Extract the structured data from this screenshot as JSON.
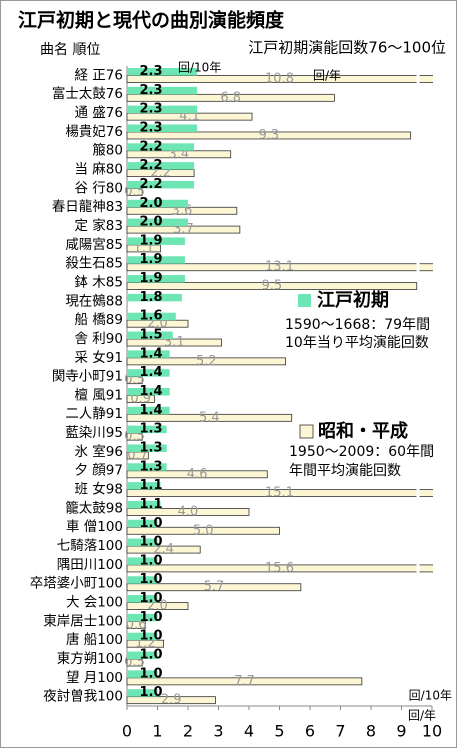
{
  "chart_data": {
    "type": "bar",
    "orientation": "horizontal",
    "title": "江戸初期と現代の曲別演能頻度",
    "subtitle": "江戸初期演能回数76～100位",
    "category_header": "曲名 順位",
    "categories": [
      "経 正76",
      "富士太鼓76",
      "通 盛76",
      "楊貴妃76",
      "箙80",
      "当 麻80",
      "谷 行80",
      "春日龍神83",
      "定 家83",
      "咸陽宮85",
      "殺生石85",
      "鉢 木85",
      "現在鵺88",
      "船 橋89",
      "舎 利90",
      "采 女91",
      "関寺小町91",
      "檀 風91",
      "二人静91",
      "藍染川95",
      "氷 室96",
      "夕 顔97",
      "班 女98",
      "籠太鼓98",
      "車 僧100",
      "七騎落100",
      "隅田川100",
      "卒塔婆小町100",
      "大 会100",
      "東岸居士100",
      "唐 船100",
      "東方朔100",
      "望 月100",
      "夜討曽我100"
    ],
    "series": [
      {
        "name": "江戸初期",
        "color": "#6ee6b4",
        "unit": "回/10年",
        "period": "1590～1668：79年間",
        "description": "10年当り平均演能回数",
        "values": [
          2.3,
          2.3,
          2.3,
          2.3,
          2.2,
          2.2,
          2.2,
          2.0,
          2.0,
          1.9,
          1.9,
          1.9,
          1.8,
          1.6,
          1.5,
          1.4,
          1.4,
          1.4,
          1.4,
          1.3,
          1.3,
          1.3,
          1.1,
          1.1,
          1.0,
          1.0,
          1.0,
          1.0,
          1.0,
          1.0,
          1.0,
          1.0,
          1.0,
          1.0
        ],
        "value_labels": [
          "2.3",
          "2.3",
          "2.3",
          "2.3",
          "2.2",
          "2.2",
          "2.2",
          "2.0",
          "2.0",
          "1.9",
          "1.9",
          "1.9",
          "1.8",
          "1.6",
          "1.5",
          "1.4",
          "1.4",
          "1.4",
          "1.4",
          "1.3",
          "1.3",
          "1.3",
          "1.1",
          "1.1",
          "1.0",
          "1.0",
          "1.0",
          "1.0",
          "1.0",
          "1.0",
          "1.0",
          "1.0",
          "1.0",
          "1.0"
        ]
      },
      {
        "name": "昭和・平成",
        "color": "#fdf6d4",
        "unit": "回/年",
        "period": "1950～2009：60年間",
        "description": "年間平均演能回数",
        "values": [
          10.8,
          6.8,
          4.1,
          9.3,
          3.4,
          2.2,
          0.5,
          3.6,
          3.7,
          1.1,
          13.1,
          9.5,
          null,
          2.0,
          3.1,
          5.2,
          0.5,
          0.9,
          5.4,
          0.5,
          0.7,
          4.6,
          15.1,
          4.0,
          5.0,
          2.4,
          15.6,
          5.7,
          2.0,
          0.6,
          1.2,
          0.5,
          7.7,
          2.9
        ],
        "value_labels": [
          "10.8",
          "6.8",
          "4.1",
          "9.3",
          "3.4",
          "2.2",
          "0.5",
          "3.6",
          "3.7",
          "1.1",
          "13.1",
          "9.5",
          null,
          "2.0",
          "3.1",
          "5.2",
          "0.5",
          "0.9",
          "5.4",
          "0.5",
          "0.7",
          "4.6",
          "15.1",
          "4.0",
          "5.0",
          "2.4",
          "15.6",
          "5.7",
          "2.0",
          "0.6",
          "1.2",
          "0.5",
          "7.7",
          "2.9"
        ]
      }
    ],
    "xlim": [
      0,
      10
    ],
    "xticks": [
      0,
      1,
      2,
      3,
      4,
      5,
      6,
      7,
      8,
      9,
      10
    ]
  }
}
